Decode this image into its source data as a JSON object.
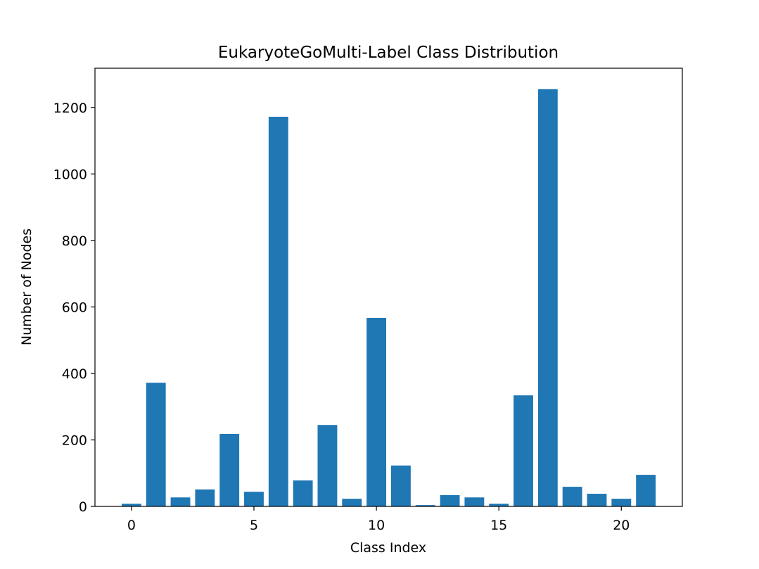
{
  "chart_data": {
    "type": "bar",
    "title": "EukaryoteGoMulti-Label Class Distribution",
    "x_label": "Class Index",
    "y_label": "Number of Nodes",
    "x": [
      0,
      1,
      2,
      3,
      4,
      5,
      6,
      7,
      8,
      9,
      10,
      11,
      12,
      13,
      14,
      15,
      16,
      17,
      18,
      19,
      20,
      21
    ],
    "values": [
      8,
      372,
      27,
      51,
      218,
      44,
      1172,
      78,
      245,
      23,
      567,
      123,
      4,
      34,
      27,
      8,
      334,
      1255,
      59,
      38,
      23,
      95
    ],
    "bar_width": 0.8,
    "color": "#1f77b4",
    "xlim": [
      -1.49,
      22.49
    ],
    "xticks": [
      0,
      5,
      10,
      15,
      20
    ],
    "ylim": [
      0,
      1318
    ],
    "yticks": [
      0,
      200,
      400,
      600,
      800,
      1000,
      1200
    ]
  }
}
